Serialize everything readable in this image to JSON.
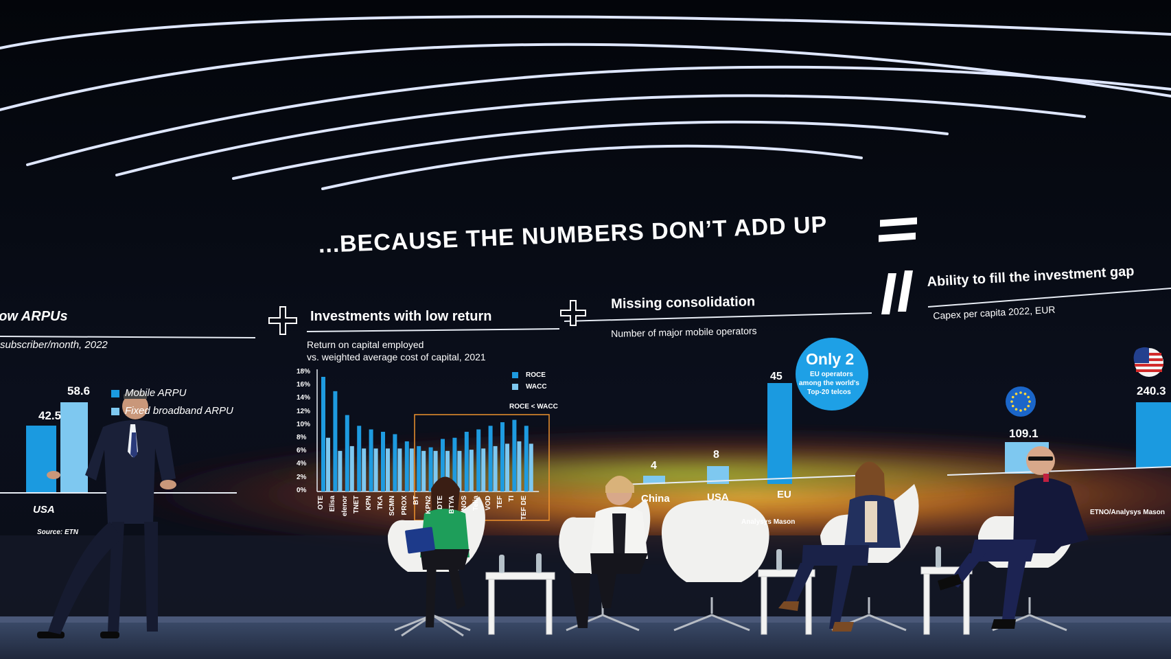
{
  "slide": {
    "title": "...BECAUSE THE NUMBERS DON’T ADD UP",
    "panel1": {
      "heading": "Low ARPUs",
      "subheading": "subscriber/month, 2022",
      "legend": [
        "Mobile ARPU",
        "Fixed broadband ARPU"
      ],
      "category": "USA",
      "values": [
        "42.5",
        "58.6"
      ],
      "source": "Source: ETN"
    },
    "panel2": {
      "heading": "Investments with low return",
      "subheading_line1": "Return on capital employed",
      "subheading_line2": "vs. weighted average cost of capital, 2021",
      "legend": [
        "ROCE",
        "WACC"
      ],
      "annotation": "ROCE < WACC",
      "y_ticks": [
        "18%",
        "16%",
        "14%",
        "12%",
        "10%",
        "8%",
        "6%",
        "4%",
        "2%",
        "0%"
      ],
      "categories": [
        "OTE",
        "Elisa",
        "elenor",
        "TNET",
        "KPN",
        "TKA",
        "SCMN",
        "PROX",
        "BT",
        "KPN2",
        "DTE",
        "BTYA",
        "NOS",
        "Telia",
        "VOD",
        "TEF",
        "TI",
        "TEF DE"
      ]
    },
    "panel3": {
      "heading": "Missing consolidation",
      "subheading": "Number of major mobile operators",
      "categories": [
        "China",
        "USA",
        "EU"
      ],
      "values": [
        "4",
        "8",
        "45"
      ],
      "badge_title": "Only 2",
      "badge_text": [
        "EU operators",
        "among the world's",
        "Top-20 telcos"
      ],
      "source": "Analysys Mason"
    },
    "panel4": {
      "heading": "Ability to fill the investment gap",
      "subheading": "Capex per capita 2022, EUR",
      "values": [
        "109.1",
        "240.3"
      ],
      "source": "ETNO/Analysys Mason"
    }
  },
  "colors": {
    "bar_light": "#7ec8f0",
    "bar_dark": "#1e9be0",
    "panel_blue": "#1b9ae0",
    "badge": "#1ea0e6",
    "chair": "#f1f1ef"
  }
}
